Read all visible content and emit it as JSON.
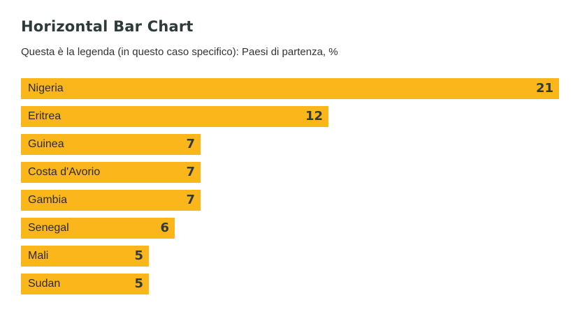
{
  "chart_data": {
    "type": "bar",
    "orientation": "horizontal",
    "title": "Horizontal Bar Chart",
    "subtitle": "Questa è la legenda (in questo caso specifico): Paesi di partenza, %",
    "categories": [
      "Nigeria",
      "Eritrea",
      "Guinea",
      "Costa d'Avorio",
      "Gambia",
      "Senegal",
      "Mali",
      "Sudan"
    ],
    "values": [
      21,
      12,
      7,
      7,
      7,
      6,
      5,
      5
    ],
    "xlim": [
      0,
      21
    ],
    "grid": false,
    "bar_color": "#fbb61b"
  }
}
